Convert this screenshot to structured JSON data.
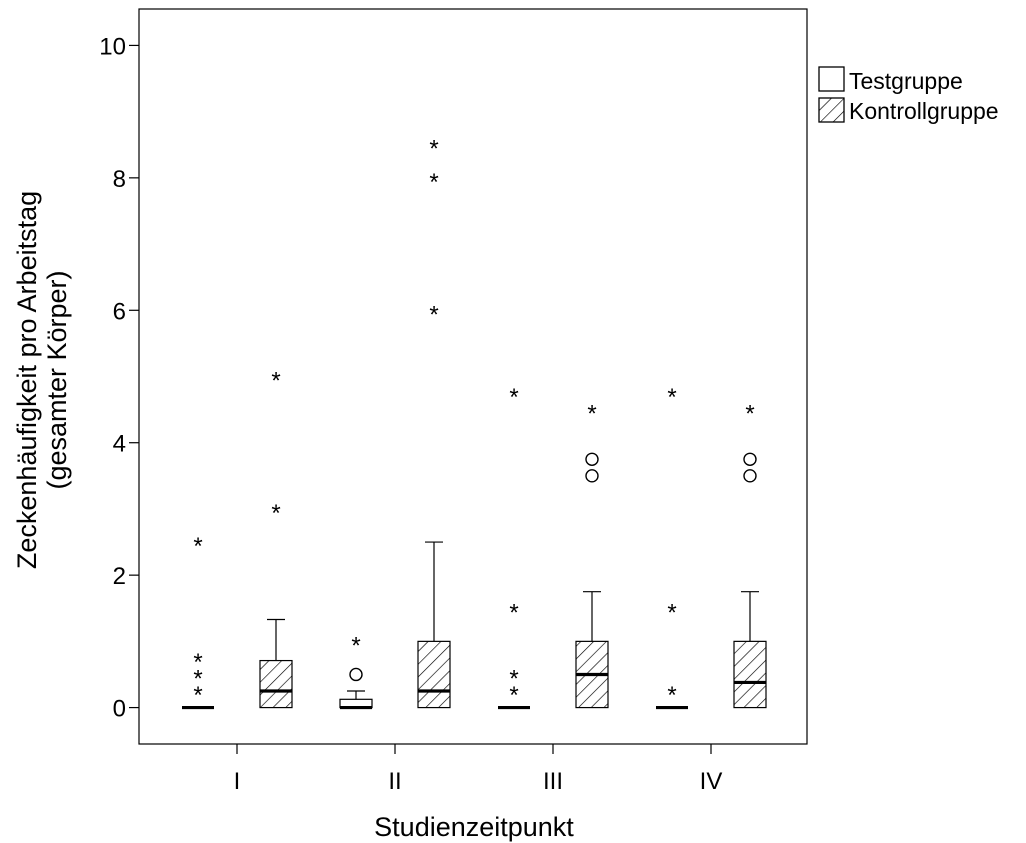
{
  "chart_data": {
    "type": "boxplot",
    "xlabel": "Studienzeitpunkt",
    "ylabel_lines": [
      "Zeckenhäufigkeit pro Arbeitstag",
      "(gesamter Körper)"
    ],
    "ylim": [
      -0.55,
      10.55
    ],
    "yticks": [
      0,
      2,
      4,
      6,
      8,
      10
    ],
    "categories": [
      "I",
      "II",
      "III",
      "IV"
    ],
    "legend": {
      "placement": "right-outside-top",
      "items": [
        {
          "label": "Testgruppe",
          "fill": "none"
        },
        {
          "label": "Kontrollgruppe",
          "fill": "hatched"
        }
      ]
    },
    "series": [
      {
        "name": "Testgruppe",
        "boxes": [
          {
            "q1": 0,
            "median": 0,
            "q3": 0,
            "whisker_low": 0,
            "whisker_high": 0,
            "outliers": [],
            "extremes": [
              0.25,
              0.5,
              0.75,
              2.5
            ]
          },
          {
            "q1": 0,
            "median": 0,
            "q3": 0.125,
            "whisker_low": 0,
            "whisker_high": 0.25,
            "outliers": [
              0.5
            ],
            "extremes": [
              1.0
            ]
          },
          {
            "q1": 0,
            "median": 0,
            "q3": 0,
            "whisker_low": 0,
            "whisker_high": 0,
            "outliers": [],
            "extremes": [
              0.25,
              0.5,
              1.5,
              4.75
            ]
          },
          {
            "q1": 0,
            "median": 0,
            "q3": 0,
            "whisker_low": 0,
            "whisker_high": 0,
            "outliers": [],
            "extremes": [
              0.25,
              1.5,
              4.75
            ]
          }
        ]
      },
      {
        "name": "Kontrollgruppe",
        "boxes": [
          {
            "q1": 0,
            "median": 0.25,
            "q3": 0.71,
            "whisker_low": 0,
            "whisker_high": 1.33,
            "outliers": [],
            "extremes": [
              3.0,
              5.0
            ]
          },
          {
            "q1": 0,
            "median": 0.25,
            "q3": 1.0,
            "whisker_low": 0,
            "whisker_high": 2.5,
            "outliers": [],
            "extremes": [
              6.0,
              8.0,
              8.5
            ]
          },
          {
            "q1": 0,
            "median": 0.5,
            "q3": 1.0,
            "whisker_low": 0,
            "whisker_high": 1.75,
            "outliers": [
              3.5,
              3.75
            ],
            "extremes": [
              4.5
            ]
          },
          {
            "q1": 0,
            "median": 0.38,
            "q3": 1.0,
            "whisker_low": 0,
            "whisker_high": 1.75,
            "outliers": [
              3.5,
              3.75
            ],
            "extremes": [
              4.5
            ]
          }
        ]
      }
    ],
    "grid": false
  }
}
